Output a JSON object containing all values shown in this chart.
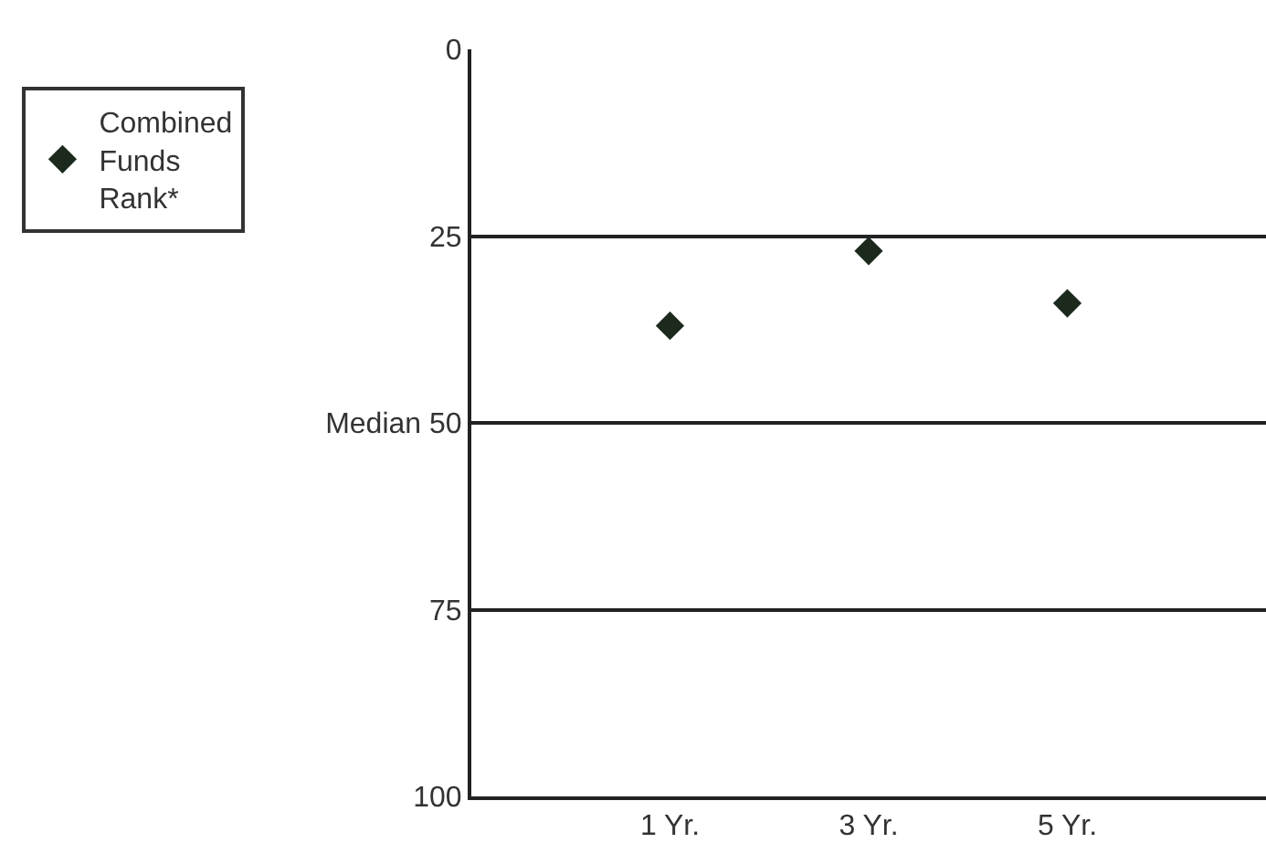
{
  "chart_data": {
    "type": "scatter",
    "categories": [
      "1 Yr.",
      "3 Yr.",
      "5 Yr."
    ],
    "series": [
      {
        "name": "Combined Funds Rank*",
        "color": "#1c2a1e",
        "values": [
          37,
          27,
          34
        ]
      }
    ],
    "ylim": [
      100,
      0
    ],
    "yticks": [
      0,
      25,
      {
        "value": 50,
        "label": "Median 50"
      },
      75,
      100
    ],
    "grid": "y",
    "legend": "top left",
    "marker": "diamond"
  }
}
